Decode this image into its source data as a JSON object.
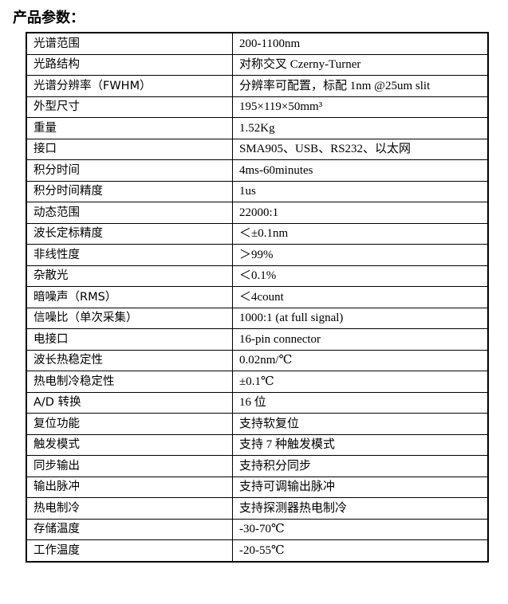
{
  "title": "产品参数：",
  "rows": [
    {
      "label": "光谱范围",
      "value": "200-1100nm"
    },
    {
      "label": "光路结构",
      "value": "对称交叉 Czerny-Turner"
    },
    {
      "label": "光谱分辨率（FWHM）",
      "value": "分辨率可配置，标配 1nm @25um slit"
    },
    {
      "label": "外型尺寸",
      "value": "195×119×50mm³"
    },
    {
      "label": "重量",
      "value": "1.52Kg"
    },
    {
      "label": "接口",
      "value": "SMA905、USB、RS232、以太网"
    },
    {
      "label": "积分时间",
      "value": "4ms-60minutes"
    },
    {
      "label": "积分时间精度",
      "value": "1us"
    },
    {
      "label": "动态范围",
      "value": "22000:1"
    },
    {
      "label": "波长定标精度",
      "value": "＜±0.1nm"
    },
    {
      "label": "非线性度",
      "value": "＞99%"
    },
    {
      "label": "杂散光",
      "value": "＜0.1%"
    },
    {
      "label": "暗噪声（RMS）",
      "value": "＜4count"
    },
    {
      "label": "信噪比（单次采集）",
      "value": "1000:1 (at full signal)"
    },
    {
      "label": "电接口",
      "value": "16-pin connector"
    },
    {
      "label": "波长热稳定性",
      "value": "0.02nm/℃"
    },
    {
      "label": "热电制冷稳定性",
      "value": "±0.1℃"
    },
    {
      "label": "A/D 转换",
      "value": "16 位"
    },
    {
      "label": "复位功能",
      "value": "支持软复位"
    },
    {
      "label": "触发模式",
      "value": "支持 7 种触发模式"
    },
    {
      "label": "同步输出",
      "value": "支持积分同步"
    },
    {
      "label": "输出脉冲",
      "value": "支持可调输出脉冲"
    },
    {
      "label": "热电制冷",
      "value": "支持探测器热电制冷"
    },
    {
      "label": "存储温度",
      "value": "-30-70℃"
    },
    {
      "label": "工作温度",
      "value": "-20-55℃"
    }
  ]
}
